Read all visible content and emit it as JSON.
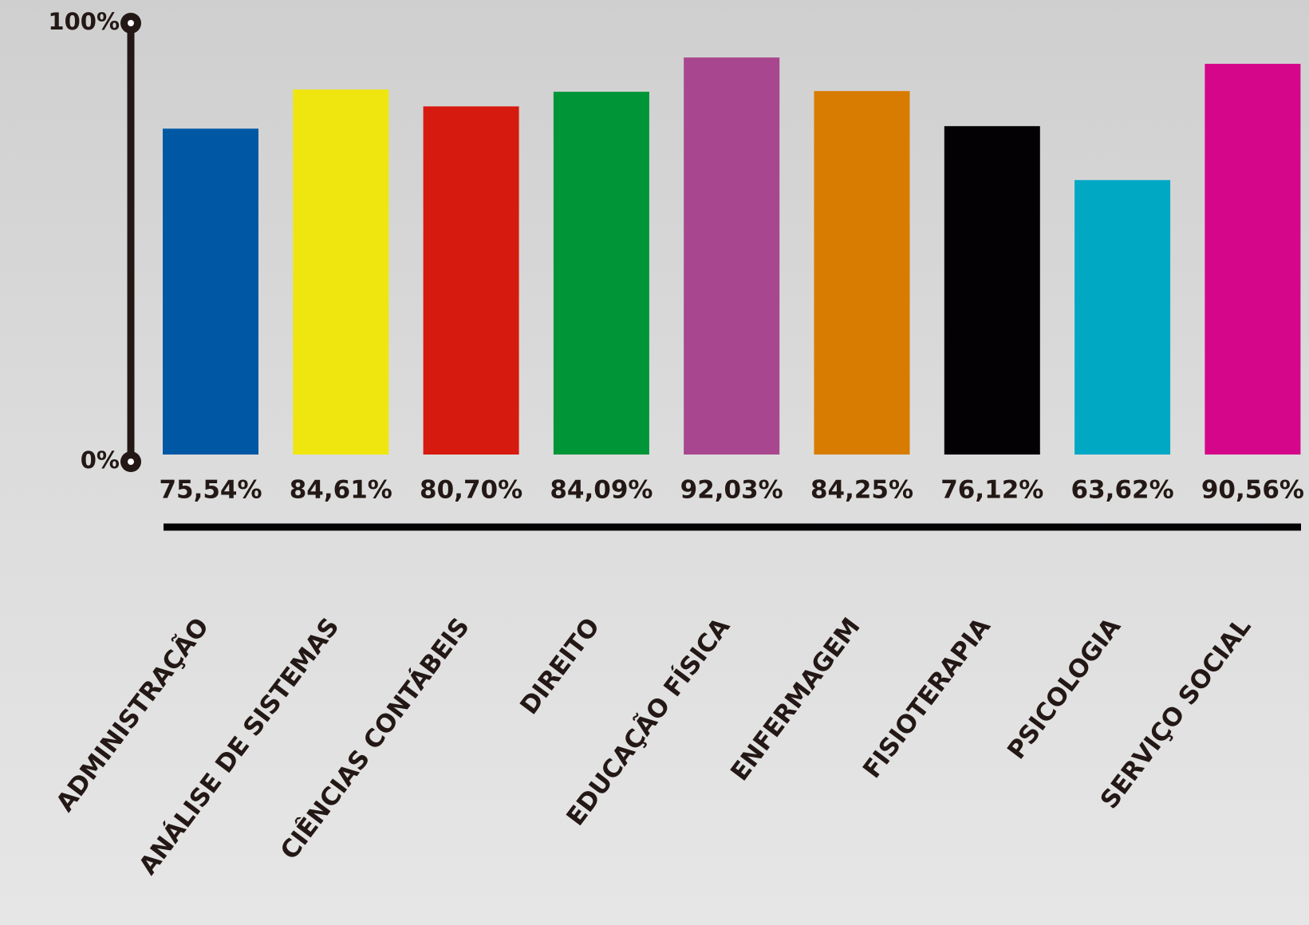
{
  "chart_data": {
    "type": "bar",
    "categories": [
      "ADMINISTRAÇÃO",
      "ANÁLISE DE SISTEMAS",
      "CIÊNCIAS CONTÁBEIS",
      "DIREITO",
      "EDUCAÇÃO FÍSICA",
      "ENFERMAGEM",
      "FISIOTERAPIA",
      "PSICOLOGIA",
      "SERVIÇO SOCIAL"
    ],
    "values": [
      75.54,
      84.61,
      80.7,
      84.09,
      92.03,
      84.25,
      76.12,
      63.62,
      90.56
    ],
    "value_labels": [
      "75,54%",
      "84,61%",
      "80,70%",
      "84,09%",
      "92,03%",
      "84,25%",
      "76,12%",
      "63,62%",
      "90,56%"
    ],
    "colors": [
      "#0058a4",
      "#f0e60f",
      "#d71a0f",
      "#009537",
      "#a8468f",
      "#d77c00",
      "#030104",
      "#00a8c4",
      "#d6068a"
    ],
    "ylim": [
      0,
      100
    ],
    "yticks": [
      {
        "value": 0,
        "label": "0%"
      },
      {
        "value": 100,
        "label": "100%"
      }
    ]
  }
}
